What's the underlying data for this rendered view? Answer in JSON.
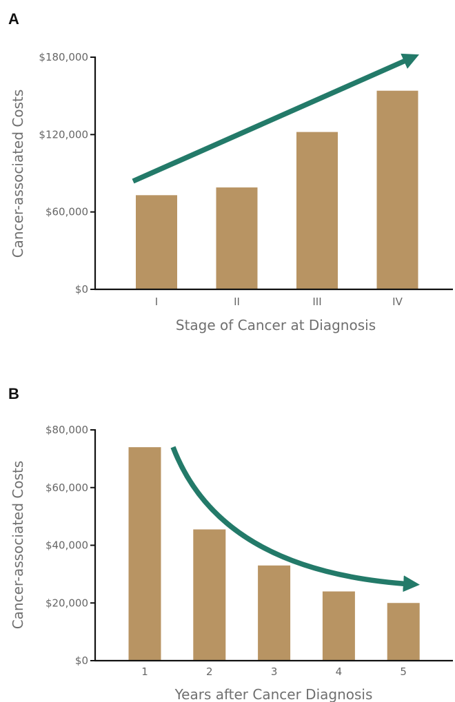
{
  "colors": {
    "bar": "#b89463",
    "arrow": "#237a69",
    "axis": "#111111",
    "text": "#666666"
  },
  "chart_data": [
    {
      "panel_label": "A",
      "type": "bar",
      "categories": [
        "I",
        "II",
        "III",
        "IV"
      ],
      "values": [
        73000,
        79000,
        122000,
        154000
      ],
      "ylim": [
        0,
        180000
      ],
      "yticks": [
        0,
        60000,
        120000,
        180000
      ],
      "ytick_labels": [
        "$0",
        "$60,000",
        "$120,000",
        "$180,000"
      ],
      "xlabel": "Stage of Cancer at Diagnosis",
      "ylabel": "Cancer-associated Costs",
      "annotation": "increasing-trend-arrow"
    },
    {
      "panel_label": "B",
      "type": "bar",
      "categories": [
        "1",
        "2",
        "3",
        "4",
        "5"
      ],
      "values": [
        74000,
        45500,
        33000,
        24000,
        20000
      ],
      "ylim": [
        0,
        80000
      ],
      "yticks": [
        0,
        20000,
        40000,
        60000,
        80000
      ],
      "ytick_labels": [
        "$0",
        "$20,000",
        "$40,000",
        "$60,000",
        "$80,000"
      ],
      "xlabel": "Years after Cancer Diagnosis",
      "ylabel": "Cancer-associated Costs",
      "annotation": "decreasing-trend-arrow"
    }
  ]
}
